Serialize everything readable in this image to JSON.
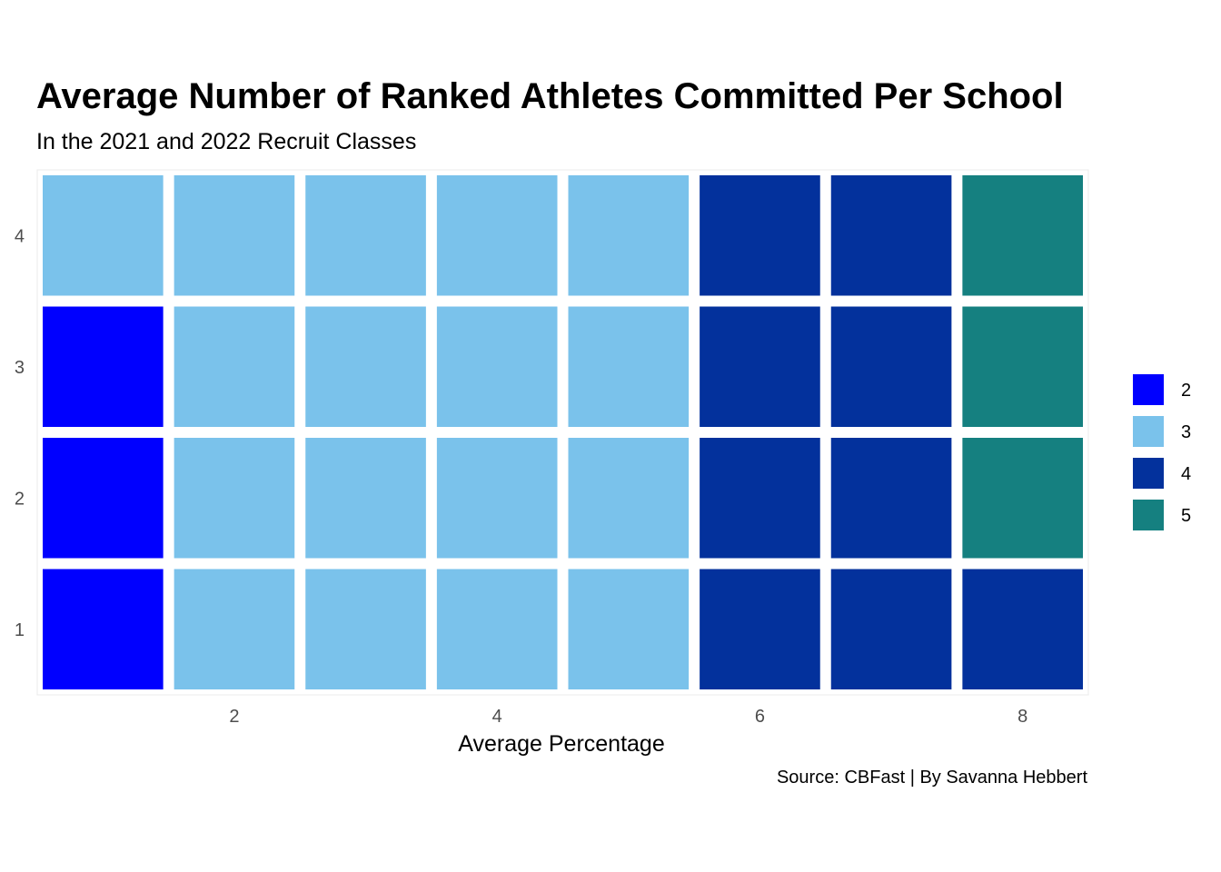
{
  "chart_data": {
    "type": "heatmap",
    "title": "Average Number of Ranked Athletes Committed Per School",
    "subtitle": "In the 2021 and 2022 Recruit Classes",
    "xlabel": "Average Percentage",
    "ylabel": "",
    "caption": "Source: CBFast | By Savanna Hebbert",
    "x_ticks": [
      2,
      4,
      6,
      8
    ],
    "y_ticks": [
      1,
      2,
      3,
      4
    ],
    "xlim": [
      0.5,
      8.5
    ],
    "ylim": [
      0.5,
      4.5
    ],
    "legend_position": "right",
    "legend": [
      {
        "label": "2",
        "color": "#0000FF"
      },
      {
        "label": "3",
        "color": "#7AC2EB"
      },
      {
        "label": "4",
        "color": "#03319C"
      },
      {
        "label": "5",
        "color": "#158080"
      }
    ],
    "cells": [
      {
        "x": 1,
        "y": 1,
        "group": "2"
      },
      {
        "x": 2,
        "y": 1,
        "group": "3"
      },
      {
        "x": 3,
        "y": 1,
        "group": "3"
      },
      {
        "x": 4,
        "y": 1,
        "group": "3"
      },
      {
        "x": 5,
        "y": 1,
        "group": "3"
      },
      {
        "x": 6,
        "y": 1,
        "group": "4"
      },
      {
        "x": 7,
        "y": 1,
        "group": "4"
      },
      {
        "x": 8,
        "y": 1,
        "group": "4"
      },
      {
        "x": 1,
        "y": 2,
        "group": "2"
      },
      {
        "x": 2,
        "y": 2,
        "group": "3"
      },
      {
        "x": 3,
        "y": 2,
        "group": "3"
      },
      {
        "x": 4,
        "y": 2,
        "group": "3"
      },
      {
        "x": 5,
        "y": 2,
        "group": "3"
      },
      {
        "x": 6,
        "y": 2,
        "group": "4"
      },
      {
        "x": 7,
        "y": 2,
        "group": "4"
      },
      {
        "x": 8,
        "y": 2,
        "group": "5"
      },
      {
        "x": 1,
        "y": 3,
        "group": "2"
      },
      {
        "x": 2,
        "y": 3,
        "group": "3"
      },
      {
        "x": 3,
        "y": 3,
        "group": "3"
      },
      {
        "x": 4,
        "y": 3,
        "group": "3"
      },
      {
        "x": 5,
        "y": 3,
        "group": "3"
      },
      {
        "x": 6,
        "y": 3,
        "group": "4"
      },
      {
        "x": 7,
        "y": 3,
        "group": "4"
      },
      {
        "x": 8,
        "y": 3,
        "group": "5"
      },
      {
        "x": 1,
        "y": 4,
        "group": "3"
      },
      {
        "x": 2,
        "y": 4,
        "group": "3"
      },
      {
        "x": 3,
        "y": 4,
        "group": "3"
      },
      {
        "x": 4,
        "y": 4,
        "group": "3"
      },
      {
        "x": 5,
        "y": 4,
        "group": "3"
      },
      {
        "x": 6,
        "y": 4,
        "group": "4"
      },
      {
        "x": 7,
        "y": 4,
        "group": "4"
      },
      {
        "x": 8,
        "y": 4,
        "group": "5"
      }
    ]
  }
}
